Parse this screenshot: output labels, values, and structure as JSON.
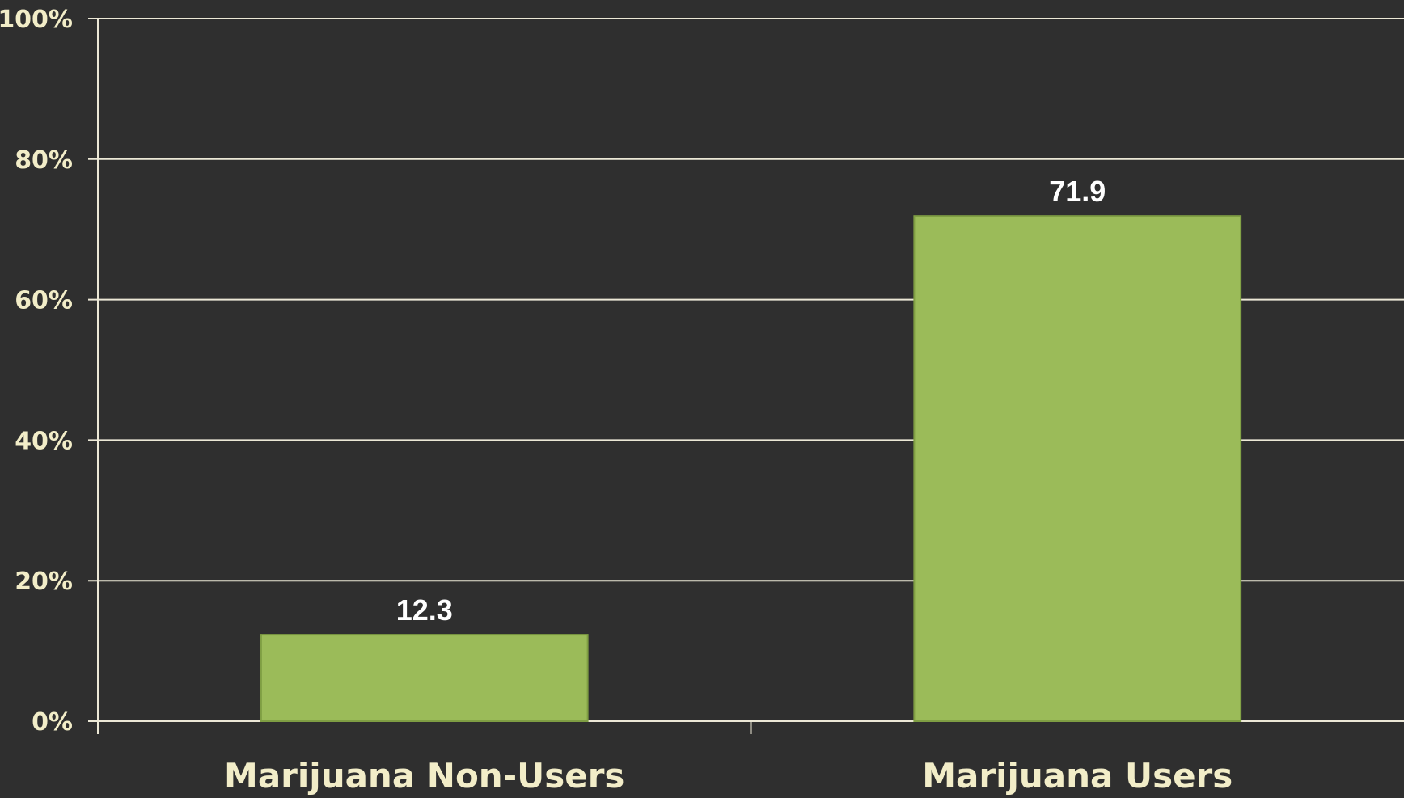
{
  "chart_data": {
    "type": "bar",
    "categories": [
      "Marijuana Non-Users",
      "Marijuana Users"
    ],
    "values": [
      12.3,
      71.9
    ],
    "data_labels": [
      "12.3",
      "71.9"
    ],
    "yticks": [
      {
        "value": 0,
        "label": "0%"
      },
      {
        "value": 20,
        "label": "20%"
      },
      {
        "value": 40,
        "label": "40%"
      },
      {
        "value": 60,
        "label": "60%"
      },
      {
        "value": 80,
        "label": "80%"
      },
      {
        "value": 100,
        "label": "100%"
      }
    ],
    "ylim": [
      0,
      100
    ],
    "title": "",
    "xlabel": "",
    "ylabel": "",
    "grid": true,
    "legend": "none",
    "colors": {
      "bar": "#9bbb59",
      "background": "#2f2f2f",
      "grid": "#ece8d6",
      "tick_text": "#f2edc8",
      "data_text": "#ffffff"
    }
  }
}
